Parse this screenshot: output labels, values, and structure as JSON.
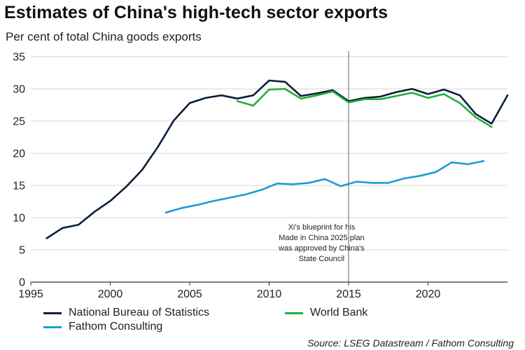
{
  "title": "Estimates of China's high-tech sector exports",
  "subtitle": "Per cent of total China goods exports",
  "source": "Source: LSEG Datastream / Fathom Consulting",
  "chart_data": {
    "type": "line",
    "title": "Estimates of China's high-tech sector exports",
    "ylabel": "Per cent of total China goods exports",
    "xlim": [
      1995,
      2025
    ],
    "ylim": [
      0,
      35
    ],
    "x_ticks": [
      1995,
      2000,
      2005,
      2010,
      2015,
      2020
    ],
    "y_ticks": [
      0,
      5,
      10,
      15,
      20,
      25,
      30,
      35
    ],
    "grid": "horizontal",
    "legend_position": "bottom",
    "series": [
      {
        "name": "National Bureau of Statistics",
        "color": "#0b1f3a",
        "points": [
          [
            1996,
            6.8
          ],
          [
            1997,
            8.4
          ],
          [
            1998,
            8.9
          ],
          [
            1999,
            10.9
          ],
          [
            2000,
            12.6
          ],
          [
            2001,
            14.8
          ],
          [
            2002,
            17.4
          ],
          [
            2003,
            21.0
          ],
          [
            2004,
            25.1
          ],
          [
            2005,
            27.8
          ],
          [
            2006,
            28.6
          ],
          [
            2007,
            29.0
          ],
          [
            2008,
            28.5
          ],
          [
            2009,
            29.0
          ],
          [
            2010,
            31.3
          ],
          [
            2011,
            31.1
          ],
          [
            2012,
            28.9
          ],
          [
            2013,
            29.3
          ],
          [
            2014,
            29.8
          ],
          [
            2015,
            28.1
          ],
          [
            2016,
            28.6
          ],
          [
            2017,
            28.8
          ],
          [
            2018,
            29.5
          ],
          [
            2019,
            30.0
          ],
          [
            2020,
            29.2
          ],
          [
            2021,
            29.9
          ],
          [
            2022,
            29.0
          ],
          [
            2023,
            26.1
          ],
          [
            2024,
            24.6
          ],
          [
            2025,
            29.0
          ]
        ]
      },
      {
        "name": "World Bank",
        "color": "#1fae3c",
        "points": [
          [
            2008,
            28.1
          ],
          [
            2009,
            27.4
          ],
          [
            2010,
            29.9
          ],
          [
            2011,
            30.0
          ],
          [
            2012,
            28.5
          ],
          [
            2013,
            29.0
          ],
          [
            2014,
            29.6
          ],
          [
            2015,
            27.9
          ],
          [
            2016,
            28.4
          ],
          [
            2017,
            28.4
          ],
          [
            2018,
            28.9
          ],
          [
            2019,
            29.4
          ],
          [
            2020,
            28.6
          ],
          [
            2021,
            29.2
          ],
          [
            2022,
            27.8
          ],
          [
            2023,
            25.6
          ],
          [
            2024,
            24.1
          ]
        ]
      },
      {
        "name": "Fathom Consulting",
        "color": "#1d9bd8",
        "points": [
          [
            2003.5,
            10.8
          ],
          [
            2004.5,
            11.5
          ],
          [
            2005.5,
            12.0
          ],
          [
            2006.5,
            12.6
          ],
          [
            2007.5,
            13.1
          ],
          [
            2008.5,
            13.6
          ],
          [
            2009.5,
            14.3
          ],
          [
            2010.5,
            15.3
          ],
          [
            2011.5,
            15.2
          ],
          [
            2012.5,
            15.4
          ],
          [
            2013.5,
            16.0
          ],
          [
            2014.5,
            14.9
          ],
          [
            2015.5,
            15.6
          ],
          [
            2016.5,
            15.4
          ],
          [
            2017.5,
            15.4
          ],
          [
            2018.5,
            16.1
          ],
          [
            2019.5,
            16.5
          ],
          [
            2020.5,
            17.1
          ],
          [
            2021.5,
            18.6
          ],
          [
            2022.5,
            18.3
          ],
          [
            2023.5,
            18.8
          ]
        ]
      }
    ],
    "vertical_line": {
      "x": 2015,
      "annotation": [
        "Xi's blueprint for his",
        "Made in China 2025 plan",
        "was approved by China's",
        "State Council"
      ]
    }
  }
}
